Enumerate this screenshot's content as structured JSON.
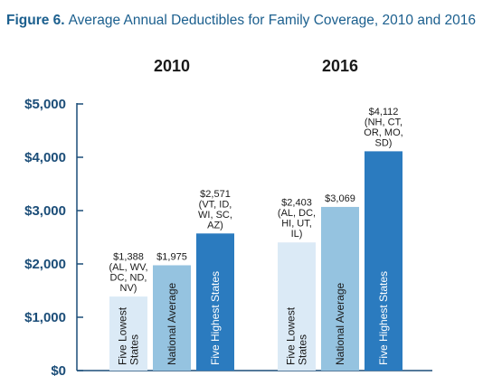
{
  "title": {
    "lead": "Figure 6.",
    "text": "Average Annual Deductibles for Family Coverage, 2010 and 2016"
  },
  "chart_data": {
    "type": "bar",
    "title": "Figure 6. Average Annual Deductibles for Family Coverage, 2010 and 2016",
    "xlabel": "",
    "ylabel": "",
    "ylim": [
      0,
      5000
    ],
    "yticks": [
      {
        "value": 0,
        "label": "$0"
      },
      {
        "value": 1000,
        "label": "$1,000"
      },
      {
        "value": 2000,
        "label": "$2,000"
      },
      {
        "value": 3000,
        "label": "$3,000"
      },
      {
        "value": 4000,
        "label": "$4,000"
      },
      {
        "value": 5000,
        "label": "$5,000"
      }
    ],
    "categories": [
      "2010",
      "2016"
    ],
    "series": [
      {
        "name": "Five Lowest States",
        "bar_label": [
          "Five Lowest",
          "States"
        ],
        "color": "#dbeaf6",
        "text_color": "#1a1a1a",
        "values": [
          1388,
          2403
        ],
        "labels": [
          [
            "$1,388",
            "(AL, WV,",
            "DC, ND,",
            "NV)"
          ],
          [
            "$2,403",
            "(AL, DC,",
            "HI, UT,",
            "IL)"
          ]
        ]
      },
      {
        "name": "National Average",
        "bar_label": [
          "National Average"
        ],
        "color": "#95c3e0",
        "text_color": "#1a1a1a",
        "values": [
          1975,
          3069
        ],
        "labels": [
          [
            "$1,975"
          ],
          [
            "$3,069"
          ]
        ]
      },
      {
        "name": "Five Highest States",
        "bar_label": [
          "Five Highest States"
        ],
        "color": "#2b7bbf",
        "text_color": "#ffffff",
        "values": [
          2571,
          4112
        ],
        "labels": [
          [
            "$2,571",
            "(VT, ID,",
            "WI, SC,",
            "AZ)"
          ],
          [
            "$4,112",
            "(NH, CT,",
            "OR, MO,",
            "SD)"
          ]
        ]
      }
    ],
    "grid": false,
    "legend": "none"
  }
}
